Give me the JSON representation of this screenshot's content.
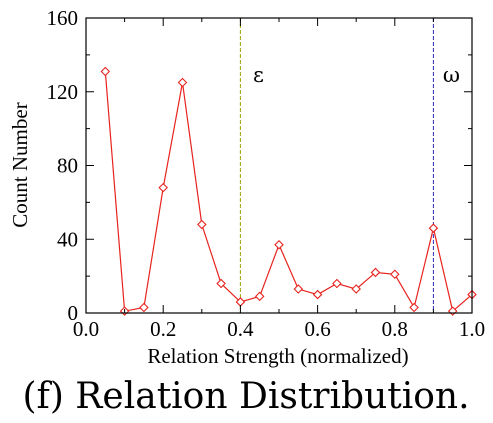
{
  "chart_data": {
    "type": "line",
    "title": "",
    "xlabel": "Relation Strength (normalized)",
    "ylabel": "Count Number",
    "caption": "(f) Relation Distribution.",
    "xlim": [
      0.0,
      1.0
    ],
    "ylim": [
      0,
      160
    ],
    "xticks": [
      0.0,
      0.2,
      0.4,
      0.6,
      0.8,
      1.0
    ],
    "xtick_labels": [
      "0.0",
      "0.2",
      "0.4",
      "0.6",
      "0.8",
      "1.0"
    ],
    "yticks": [
      0,
      40,
      80,
      120,
      160
    ],
    "ytick_labels": [
      "0",
      "40",
      "80",
      "120",
      "160"
    ],
    "grid": false,
    "series": [
      {
        "name": "Relation Distribution",
        "color": "#e8231e",
        "marker": "diamond-open",
        "x": [
          0.05,
          0.1,
          0.15,
          0.2,
          0.25,
          0.3,
          0.35,
          0.4,
          0.45,
          0.5,
          0.55,
          0.6,
          0.65,
          0.7,
          0.75,
          0.8,
          0.85,
          0.9,
          0.95,
          1.0
        ],
        "y": [
          131,
          1,
          3,
          68,
          125,
          48,
          16,
          6,
          9,
          37,
          13,
          10,
          16,
          13,
          22,
          21,
          3,
          46,
          1,
          10
        ]
      }
    ],
    "annotations": [
      {
        "text": "ε",
        "x": 0.4,
        "label_y": 129,
        "line_color": "#9aa800"
      },
      {
        "text": "ω",
        "x": 0.9,
        "label_y": 129,
        "line_color": "#2b2bb8"
      }
    ]
  }
}
